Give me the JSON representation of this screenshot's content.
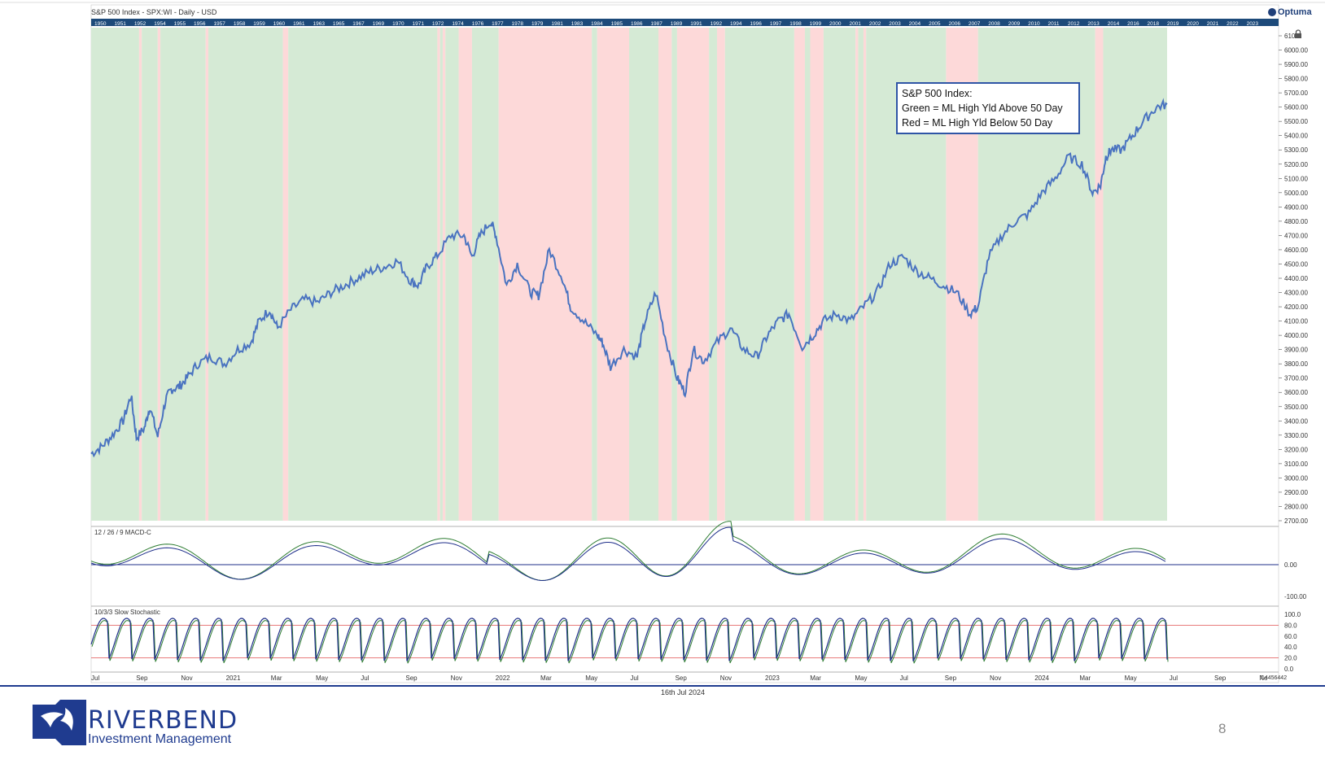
{
  "chart_title": "S&P 500 Index - SPX:WI - Daily - USD",
  "brand": "Optuma",
  "timeline_years": [
    "1950",
    "1951",
    "1952",
    "1954",
    "1955",
    "1956",
    "1957",
    "1958",
    "1959",
    "1960",
    "1961",
    "1963",
    "1965",
    "1967",
    "1969",
    "1970",
    "1971",
    "1972",
    "1974",
    "1976",
    "1977",
    "1978",
    "1979",
    "1981",
    "1983",
    "1984",
    "1985",
    "1986",
    "1987",
    "1989",
    "1991",
    "1992",
    "1994",
    "1996",
    "1997",
    "1998",
    "1999",
    "2000",
    "2001",
    "2002",
    "2003",
    "2004",
    "2005",
    "2006",
    "2007",
    "2008",
    "2009",
    "2010",
    "2011",
    "2012",
    "2013",
    "2014",
    "2016",
    "2018",
    "2019",
    "2020",
    "2021",
    "2022",
    "2023"
  ],
  "legend": {
    "line1": "S&P 500 Index:",
    "line2": "Green = ML High Yld Above 50 Day",
    "line3": "Red = ML High Yld Below 50 Day"
  },
  "macd_label": "12 / 26 / 9 MACD-C",
  "stoch_label": "10/3/3 Slow Stochastic",
  "footer_date": "16th Jul 2024",
  "corner_value": "7.4456442",
  "page_number": "8",
  "company": {
    "name": "RIVERBEND",
    "subtitle": "Investment Management"
  },
  "colors": {
    "green_band": "#d5ead5",
    "red_band": "#fdd9d9",
    "price_line": "#4a73c0",
    "brand_blue": "#1f3b8f"
  },
  "chart_data": [
    {
      "type": "line",
      "title": "S&P 500 Index - SPX:WI - Daily - USD",
      "ylim": [
        2700,
        6100
      ],
      "y_ticks": [
        6100,
        6000,
        5900,
        5800,
        5700,
        5600,
        5500,
        5400,
        5300,
        5200,
        5100,
        5000,
        4900,
        4800,
        4700,
        4600,
        4500,
        4400,
        4300,
        4200,
        4100,
        4000,
        3900,
        3800,
        3700,
        3600,
        3500,
        3400,
        3300,
        3200,
        3100,
        3000,
        2900,
        2800,
        2700
      ],
      "y_tick_labels": [
        "6100",
        "6000.00",
        "5900.00",
        "5800.00",
        "5700.00",
        "5600.00",
        "5500.00",
        "5400.00",
        "5300.00",
        "5200.00",
        "5100.00",
        "5000.00",
        "4900.00",
        "4800.00",
        "4700.00",
        "4600.00",
        "4500.00",
        "4400.00",
        "4300.00",
        "4200.00",
        "4100.00",
        "4000.00",
        "3900.00",
        "3800.00",
        "3700.00",
        "3600.00",
        "3500.00",
        "3400.00",
        "3300.00",
        "3200.00",
        "3100.00",
        "3000.00",
        "2900.00",
        "2800.00",
        "2700.00"
      ],
      "x_tick_labels": [
        "Jul",
        "Sep",
        "Nov",
        "2021",
        "Mar",
        "May",
        "Jul",
        "Sep",
        "Nov",
        "2022",
        "Mar",
        "May",
        "Jul",
        "Sep",
        "Nov",
        "2023",
        "Mar",
        "May",
        "Jul",
        "Sep",
        "Nov",
        "2024",
        "Mar",
        "May",
        "Jul",
        "Sep",
        "No"
      ],
      "x_range": [
        2020.5,
        2024.54
      ],
      "series": [
        {
          "x": [
            2020.5,
            2020.54,
            2020.58,
            2020.62,
            2020.65,
            2020.67,
            2020.7,
            2020.72,
            2020.75,
            2020.78,
            2020.8,
            2020.83,
            2020.86,
            2020.9,
            2020.95,
            2021.0,
            2021.05,
            2021.1,
            2021.13,
            2021.17,
            2021.2,
            2021.25,
            2021.3,
            2021.35,
            2021.4,
            2021.45,
            2021.5,
            2021.55,
            2021.6,
            2021.65,
            2021.7,
            2021.73,
            2021.76,
            2021.8,
            2021.85,
            2021.9,
            2021.93,
            2021.96,
            2022.0,
            2022.02,
            2022.06,
            2022.1,
            2022.15,
            2022.18,
            2022.22,
            2022.27,
            2022.3,
            2022.35,
            2022.4,
            2022.42,
            2022.45,
            2022.5,
            2022.55,
            2022.58,
            2022.62,
            2022.66,
            2022.7,
            2022.73,
            2022.76,
            2022.8,
            2022.85,
            2022.9,
            2022.95,
            2023.0,
            2023.04,
            2023.08,
            2023.12,
            2023.17,
            2023.21,
            2023.25,
            2023.3,
            2023.35,
            2023.4,
            2023.45,
            2023.5,
            2023.55,
            2023.6,
            2023.65,
            2023.7,
            2023.75,
            2023.8,
            2023.83,
            2023.87,
            2023.92,
            2023.97,
            2024.02,
            2024.07,
            2024.12,
            2024.17,
            2024.22,
            2024.26,
            2024.29,
            2024.31,
            2024.33,
            2024.37,
            2024.41,
            2024.45,
            2024.5,
            2024.54
          ],
          "y": [
            3170,
            3220,
            3300,
            3400,
            3580,
            3280,
            3350,
            3500,
            3290,
            3550,
            3620,
            3640,
            3700,
            3800,
            3850,
            3800,
            3900,
            3950,
            4100,
            4180,
            4050,
            4180,
            4250,
            4230,
            4300,
            4350,
            4400,
            4450,
            4480,
            4520,
            4380,
            4350,
            4480,
            4560,
            4700,
            4700,
            4550,
            4700,
            4800,
            4700,
            4350,
            4500,
            4300,
            4280,
            4600,
            4400,
            4200,
            4100,
            4000,
            3950,
            3780,
            3900,
            3850,
            4100,
            4300,
            3950,
            3700,
            3600,
            3900,
            3820,
            3950,
            4050,
            3900,
            3850,
            4000,
            4100,
            4150,
            3920,
            4000,
            4100,
            4150,
            4100,
            4200,
            4300,
            4500,
            4550,
            4450,
            4400,
            4350,
            4300,
            4150,
            4200,
            4550,
            4700,
            4800,
            4850,
            5000,
            5100,
            5250,
            5200,
            5000,
            5050,
            5250,
            5300,
            5300,
            5400,
            5500,
            5600,
            5620
          ]
        }
      ],
      "green_red_bands": [
        [
          "green",
          2020.5,
          2020.68
        ],
        [
          "red",
          2020.68,
          2020.69
        ],
        [
          "green",
          2020.69,
          2020.75
        ],
        [
          "red",
          2020.75,
          2020.76
        ],
        [
          "green",
          2020.76,
          2020.93
        ],
        [
          "red",
          2020.93,
          2020.94
        ],
        [
          "green",
          2020.94,
          2021.22
        ],
        [
          "red",
          2021.22,
          2021.24
        ],
        [
          "green",
          2021.24,
          2021.8
        ],
        [
          "red",
          2021.8,
          2021.81
        ],
        [
          "green",
          2021.81,
          2021.82
        ],
        [
          "red",
          2021.82,
          2021.83
        ],
        [
          "green",
          2021.83,
          2021.88
        ],
        [
          "red",
          2021.88,
          2021.93
        ],
        [
          "green",
          2021.93,
          2022.03
        ],
        [
          "red",
          2022.03,
          2022.38
        ],
        [
          "green",
          2022.38,
          2022.4
        ],
        [
          "red",
          2022.4,
          2022.52
        ],
        [
          "green",
          2022.52,
          2022.63
        ],
        [
          "red",
          2022.63,
          2022.68
        ],
        [
          "green",
          2022.68,
          2022.7
        ],
        [
          "red",
          2022.7,
          2022.82
        ],
        [
          "green",
          2022.82,
          2022.85
        ],
        [
          "red",
          2022.85,
          2022.88
        ],
        [
          "green",
          2022.88,
          2023.14
        ],
        [
          "red",
          2023.14,
          2023.18
        ],
        [
          "green",
          2023.18,
          2023.2
        ],
        [
          "red",
          2023.2,
          2023.25
        ],
        [
          "green",
          2023.25,
          2023.37
        ],
        [
          "red",
          2023.37,
          2023.38
        ],
        [
          "green",
          2023.38,
          2023.4
        ],
        [
          "red",
          2023.4,
          2023.41
        ],
        [
          "green",
          2023.41,
          2023.71
        ],
        [
          "red",
          2023.71,
          2023.83
        ],
        [
          "green",
          2023.83,
          2024.27
        ],
        [
          "red",
          2024.27,
          2024.3
        ],
        [
          "green",
          2024.3,
          2024.54
        ]
      ]
    },
    {
      "type": "line",
      "title": "12 / 26 / 9 MACD-C",
      "y_tick_labels": [
        "0.00",
        "-100.00"
      ],
      "ylim": [
        -120,
        100
      ]
    },
    {
      "type": "line",
      "title": "10/3/3 Slow Stochastic",
      "ylim": [
        0,
        100
      ],
      "y_tick_labels": [
        "100.0",
        "80.0",
        "60.0",
        "40.0",
        "20.0",
        "0.0"
      ],
      "reference_lines": [
        80,
        20
      ]
    }
  ]
}
